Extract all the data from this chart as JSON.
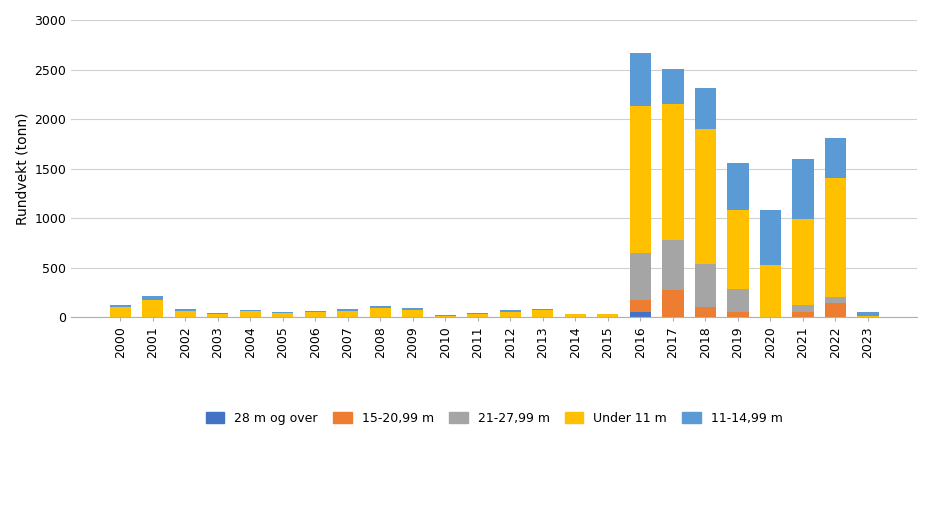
{
  "years": [
    2000,
    2001,
    2002,
    2003,
    2004,
    2005,
    2006,
    2007,
    2008,
    2009,
    2010,
    2011,
    2012,
    2013,
    2014,
    2015,
    2016,
    2017,
    2018,
    2019,
    2020,
    2021,
    2022,
    2023
  ],
  "series": {
    "28 m og over": [
      0,
      0,
      0,
      0,
      0,
      0,
      0,
      0,
      0,
      0,
      0,
      0,
      0,
      0,
      0,
      0,
      50,
      5,
      0,
      0,
      0,
      0,
      0,
      0
    ],
    "15-20,99 m": [
      0,
      0,
      0,
      0,
      0,
      0,
      0,
      0,
      0,
      0,
      0,
      0,
      0,
      0,
      0,
      0,
      120,
      270,
      100,
      55,
      0,
      55,
      145,
      0
    ],
    "21-27,99 m": [
      0,
      0,
      0,
      0,
      0,
      0,
      0,
      0,
      0,
      0,
      0,
      0,
      0,
      0,
      0,
      0,
      480,
      500,
      440,
      225,
      0,
      70,
      60,
      0
    ],
    "Under 11 m": [
      100,
      175,
      65,
      35,
      65,
      45,
      55,
      65,
      90,
      75,
      15,
      35,
      55,
      70,
      30,
      30,
      1480,
      1380,
      1360,
      800,
      530,
      870,
      1200,
      10
    ],
    "11-14,99 m": [
      20,
      35,
      18,
      10,
      8,
      8,
      10,
      12,
      20,
      18,
      10,
      10,
      12,
      8,
      6,
      5,
      540,
      355,
      410,
      480,
      550,
      605,
      405,
      45
    ]
  },
  "colors": {
    "28 m og over": "#4472C4",
    "15-20,99 m": "#ED7D31",
    "21-27,99 m": "#A5A5A5",
    "Under 11 m": "#FFC000",
    "11-14,99 m": "#5B9BD5"
  },
  "ylabel": "Rundvekt (tonn)",
  "ylim": [
    0,
    3000
  ],
  "yticks": [
    0,
    500,
    1000,
    1500,
    2000,
    2500,
    3000
  ],
  "legend_order": [
    "28 m og over",
    "15-20,99 m",
    "21-27,99 m",
    "Under 11 m",
    "11-14,99 m"
  ],
  "background_color": "#ffffff",
  "grid_color": "#d0d0d0"
}
